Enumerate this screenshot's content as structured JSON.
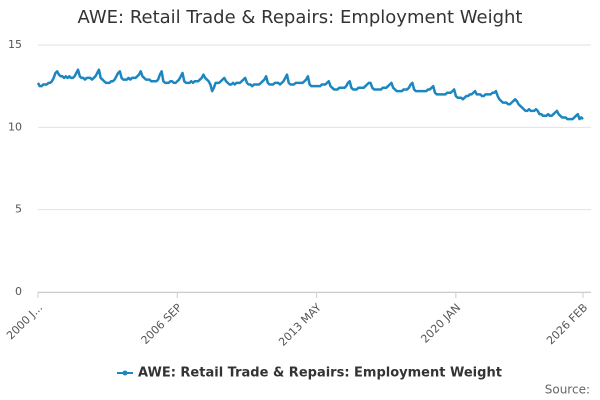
{
  "chart_data": {
    "type": "line",
    "title": "AWE: Retail Trade & Repairs: Employment Weight",
    "source": "Source:",
    "categories": [
      "2000 J...",
      null,
      null,
      null,
      null,
      null,
      null,
      null,
      null,
      null,
      null,
      null,
      null,
      null,
      null,
      null,
      null,
      null,
      null,
      null,
      null,
      null,
      null,
      null,
      null,
      null,
      null,
      null,
      null,
      null,
      null,
      null,
      null,
      null,
      null,
      null,
      null,
      null,
      null,
      null,
      null,
      null,
      null,
      null,
      null,
      null,
      null,
      null,
      null,
      null,
      null,
      null,
      null,
      null,
      null,
      null,
      null,
      null,
      null,
      null,
      null,
      null,
      null,
      null,
      null,
      null,
      null,
      null,
      null,
      null,
      null,
      null,
      null,
      null,
      null,
      null,
      null,
      null,
      null,
      null,
      "2006 SEP",
      null,
      null,
      null,
      null,
      null,
      null,
      null,
      null,
      null,
      null,
      null,
      null,
      null,
      null,
      null,
      null,
      null,
      null,
      null,
      null,
      null,
      null,
      null,
      null,
      null,
      null,
      null,
      null,
      null,
      null,
      null,
      null,
      null,
      null,
      null,
      null,
      null,
      null,
      null,
      null,
      null,
      null,
      null,
      null,
      null,
      null,
      null,
      null,
      null,
      null,
      null,
      null,
      null,
      null,
      null,
      null,
      null,
      null,
      null,
      null,
      null,
      null,
      null,
      null,
      null,
      null,
      null,
      null,
      null,
      null,
      null,
      null,
      null,
      null,
      null,
      null,
      null,
      null,
      null,
      "2013 MAY",
      null,
      null,
      null,
      null,
      null,
      null,
      null,
      null,
      null,
      null,
      null,
      null,
      null,
      null,
      null,
      null,
      null,
      null,
      null,
      null,
      null,
      null,
      null,
      null,
      null,
      null,
      null,
      null,
      null,
      null,
      null,
      null,
      null,
      null,
      null,
      null,
      null,
      null,
      null,
      null,
      null,
      null,
      null,
      null,
      null,
      null,
      null,
      null,
      null,
      null,
      null,
      null,
      null,
      null,
      null,
      null,
      null,
      null,
      null,
      null,
      null,
      null,
      null,
      null,
      null,
      null,
      null,
      null,
      null,
      null,
      null,
      null,
      null,
      null,
      null,
      null,
      null,
      null,
      null,
      "2020 JAN",
      null,
      null,
      null,
      null,
      null,
      null,
      null,
      null,
      null,
      null,
      null,
      null,
      null,
      null,
      null,
      null,
      null,
      null,
      null,
      null,
      null,
      null,
      null,
      null,
      null,
      null,
      null,
      null,
      null,
      null,
      null,
      null,
      null,
      null,
      null,
      null,
      null,
      null,
      null,
      null,
      null,
      null,
      null,
      null,
      null,
      null,
      null,
      null,
      null,
      null,
      null,
      null,
      null,
      null,
      null,
      null,
      null,
      null,
      null,
      null,
      null,
      null,
      null,
      null,
      null,
      null,
      null,
      null,
      null,
      null,
      null,
      null,
      "2026 FEB"
    ],
    "series": [
      {
        "name": "AWE: Retail Trade & Repairs: Employment Weight",
        "color": "#1b86c0",
        "values": [
          12.7,
          12.5,
          12.5,
          12.6,
          12.6,
          12.6,
          12.7,
          12.7,
          12.8,
          13.0,
          13.3,
          13.4,
          13.2,
          13.1,
          13.1,
          13.0,
          13.1,
          13.0,
          13.1,
          13.0,
          13.0,
          13.1,
          13.3,
          13.5,
          13.1,
          13.0,
          13.0,
          12.9,
          13.0,
          13.0,
          13.0,
          12.9,
          13.0,
          13.1,
          13.3,
          13.5,
          13.0,
          12.9,
          12.8,
          12.7,
          12.7,
          12.7,
          12.8,
          12.8,
          12.9,
          13.1,
          13.3,
          13.4,
          13.0,
          12.9,
          12.9,
          12.9,
          13.0,
          12.9,
          13.0,
          13.0,
          13.0,
          13.1,
          13.2,
          13.4,
          13.1,
          13.0,
          12.9,
          12.9,
          12.9,
          12.8,
          12.8,
          12.8,
          12.8,
          12.9,
          13.2,
          13.4,
          12.8,
          12.7,
          12.7,
          12.7,
          12.8,
          12.8,
          12.7,
          12.7,
          12.8,
          12.9,
          13.1,
          13.3,
          12.8,
          12.7,
          12.7,
          12.7,
          12.8,
          12.7,
          12.8,
          12.8,
          12.8,
          12.9,
          13.0,
          13.2,
          13.0,
          12.9,
          12.8,
          12.6,
          12.2,
          12.4,
          12.7,
          12.7,
          12.7,
          12.8,
          12.9,
          13.0,
          12.8,
          12.7,
          12.6,
          12.6,
          12.7,
          12.6,
          12.7,
          12.7,
          12.7,
          12.8,
          12.9,
          13.0,
          12.7,
          12.6,
          12.6,
          12.5,
          12.6,
          12.6,
          12.6,
          12.6,
          12.7,
          12.8,
          12.9,
          13.1,
          12.7,
          12.6,
          12.6,
          12.6,
          12.7,
          12.7,
          12.7,
          12.6,
          12.7,
          12.8,
          13.0,
          13.2,
          12.7,
          12.6,
          12.6,
          12.6,
          12.7,
          12.7,
          12.7,
          12.7,
          12.7,
          12.8,
          12.9,
          13.1,
          12.6,
          12.5,
          12.5,
          12.5,
          12.5,
          12.5,
          12.5,
          12.6,
          12.6,
          12.6,
          12.7,
          12.8,
          12.5,
          12.4,
          12.3,
          12.3,
          12.3,
          12.4,
          12.4,
          12.4,
          12.4,
          12.5,
          12.7,
          12.8,
          12.4,
          12.3,
          12.3,
          12.3,
          12.4,
          12.4,
          12.4,
          12.4,
          12.5,
          12.6,
          12.7,
          12.7,
          12.4,
          12.3,
          12.3,
          12.3,
          12.3,
          12.3,
          12.4,
          12.4,
          12.4,
          12.5,
          12.6,
          12.7,
          12.4,
          12.3,
          12.2,
          12.2,
          12.2,
          12.2,
          12.3,
          12.3,
          12.3,
          12.4,
          12.6,
          12.7,
          12.3,
          12.2,
          12.2,
          12.2,
          12.2,
          12.2,
          12.2,
          12.2,
          12.3,
          12.3,
          12.4,
          12.5,
          12.1,
          12.0,
          12.0,
          12.0,
          12.0,
          12.0,
          12.0,
          12.1,
          12.1,
          12.1,
          12.2,
          12.3,
          11.9,
          11.8,
          11.8,
          11.8,
          11.7,
          11.8,
          11.9,
          11.9,
          12.0,
          12.0,
          12.1,
          12.2,
          12.0,
          12.0,
          12.0,
          11.9,
          11.9,
          12.0,
          12.0,
          12.0,
          12.0,
          12.1,
          12.1,
          12.2,
          11.9,
          11.7,
          11.6,
          11.5,
          11.5,
          11.5,
          11.4,
          11.4,
          11.5,
          11.6,
          11.7,
          11.6,
          11.4,
          11.3,
          11.2,
          11.1,
          11.0,
          11.0,
          11.1,
          11.0,
          11.0,
          11.0,
          11.1,
          11.0,
          10.8,
          10.8,
          10.7,
          10.7,
          10.7,
          10.8,
          10.7,
          10.7,
          10.8,
          10.9,
          11.0,
          10.8,
          10.7,
          10.6,
          10.6,
          10.6,
          10.5,
          10.5,
          10.5,
          10.5,
          10.6,
          10.7,
          10.8,
          10.5,
          10.6,
          10.5
        ]
      }
    ],
    "ylim": [
      0,
      15
    ],
    "yticks": [
      0,
      5,
      10,
      15
    ],
    "grid": true,
    "legend": "bottom"
  }
}
